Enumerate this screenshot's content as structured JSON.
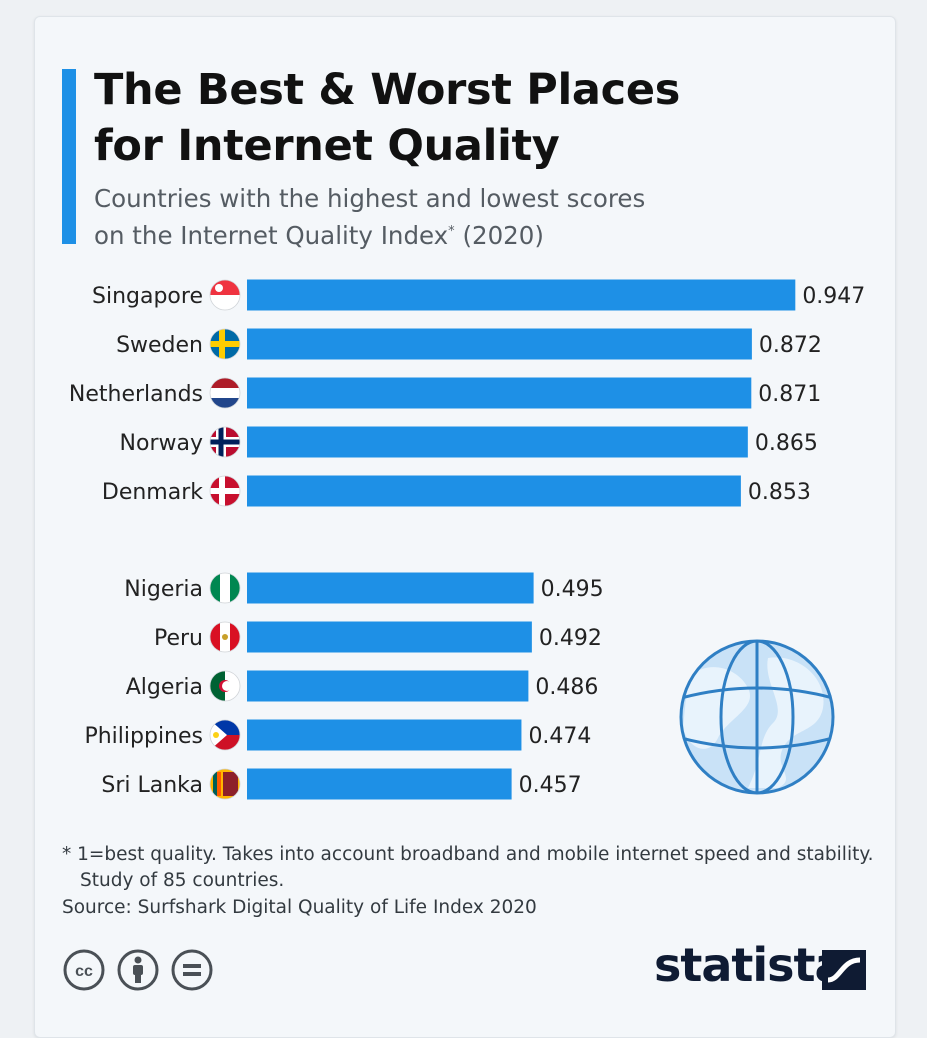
{
  "title_line1": "The Best & Worst Places",
  "title_line2": "for Internet Quality",
  "subtitle_line1": "Countries with the highest and lowest scores",
  "subtitle_line2_main": "on the Internet Quality Index",
  "subtitle_sup": "*",
  "subtitle_line2_end": " (2020)",
  "footnote": "* 1=best quality. Takes into account broadband and mobile internet speed and stability. Study of 85 countries.",
  "source": "Source: Surfshark Digital Quality of Life Index 2020",
  "brand": "statista",
  "colors": {
    "bar": "#1e90e6",
    "accent": "#1e90e6",
    "background": "#f4f7fa"
  },
  "icons": [
    "creative-commons-icon",
    "attribution-icon",
    "no-derivatives-icon",
    "globe-icon",
    "statista-logo-icon"
  ],
  "chart_data": {
    "type": "bar",
    "orientation": "horizontal",
    "groups": [
      {
        "rows": [
          {
            "country": "Singapore",
            "value": 0.947,
            "label": "0.947",
            "flag": "singapore-flag-icon"
          },
          {
            "country": "Sweden",
            "value": 0.872,
            "label": "0.872",
            "flag": "sweden-flag-icon"
          },
          {
            "country": "Netherlands",
            "value": 0.871,
            "label": "0.871",
            "flag": "netherlands-flag-icon"
          },
          {
            "country": "Norway",
            "value": 0.865,
            "label": "0.865",
            "flag": "norway-flag-icon"
          },
          {
            "country": "Denmark",
            "value": 0.853,
            "label": "0.853",
            "flag": "denmark-flag-icon"
          }
        ]
      },
      {
        "rows": [
          {
            "country": "Nigeria",
            "value": 0.495,
            "label": "0.495",
            "flag": "nigeria-flag-icon"
          },
          {
            "country": "Peru",
            "value": 0.492,
            "label": "0.492",
            "flag": "peru-flag-icon"
          },
          {
            "country": "Algeria",
            "value": 0.486,
            "label": "0.486",
            "flag": "algeria-flag-icon"
          },
          {
            "country": "Philippines",
            "value": 0.474,
            "label": "0.474",
            "flag": "philippines-flag-icon"
          },
          {
            "country": "Sri Lanka",
            "value": 0.457,
            "label": "0.457",
            "flag": "sri-lanka-flag-icon"
          }
        ]
      }
    ],
    "xlim": [
      0,
      1
    ],
    "grid": false,
    "legend": "none"
  }
}
